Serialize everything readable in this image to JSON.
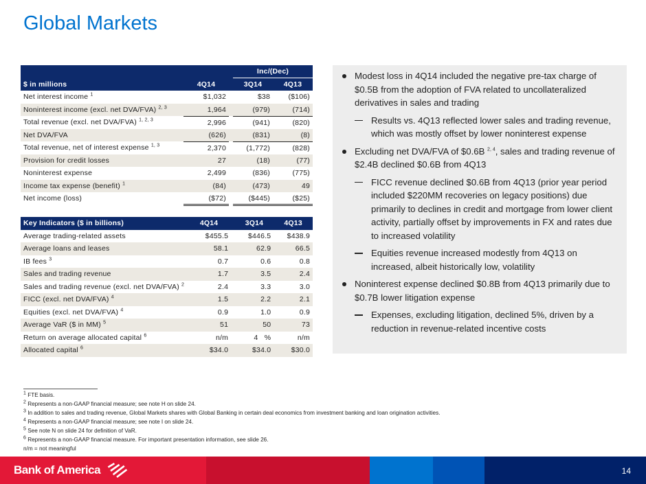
{
  "title": "Global Markets",
  "table1": {
    "group_header": "Inc/(Dec)",
    "label_header": "$ in millions",
    "columns": [
      "4Q14",
      "3Q14",
      "4Q13"
    ],
    "rows": [
      {
        "label": "Net interest income",
        "sup": "1",
        "values": [
          "$1,032",
          "$38",
          "($106)"
        ]
      },
      {
        "label": "Noninterest income (excl. net DVA/FVA)",
        "sup": "2, 3",
        "values": [
          "1,964",
          "(979)",
          "(714)"
        ]
      },
      {
        "label": "Total revenue (excl. net DVA/FVA)",
        "sup": "1, 2, 3",
        "values": [
          "2,996",
          "(941)",
          "(820)"
        ]
      },
      {
        "label": "Net DVA/FVA",
        "sup": "",
        "values": [
          "(626)",
          "(831)",
          "(8)"
        ]
      },
      {
        "label": "Total revenue, net of interest expense",
        "sup": "1, 3",
        "values": [
          "2,370",
          "(1,772)",
          "(828)"
        ]
      },
      {
        "label": "Provision for credit losses",
        "sup": "",
        "values": [
          "27",
          "(18)",
          "(77)"
        ]
      },
      {
        "label": "Noninterest expense",
        "sup": "",
        "values": [
          "2,499",
          "(836)",
          "(775)"
        ]
      },
      {
        "label": "Income tax expense (benefit)",
        "sup": "1",
        "values": [
          "(84)",
          "(473)",
          "49"
        ]
      },
      {
        "label": "Net income (loss)",
        "sup": "",
        "values": [
          "($72)",
          "($445)",
          "($25)"
        ]
      }
    ]
  },
  "table2": {
    "label_header": "Key Indicators ($ in billions)",
    "columns": [
      "4Q14",
      "3Q14",
      "4Q13"
    ],
    "rows": [
      {
        "label": "Average trading-related assets",
        "sup": "",
        "values": [
          "$455.5",
          "$446.5",
          "$438.9"
        ]
      },
      {
        "label": "Average loans and leases",
        "sup": "",
        "values": [
          "58.1",
          "62.9",
          "66.5"
        ]
      },
      {
        "label": "IB fees",
        "sup": "3",
        "values": [
          "0.7",
          "0.6",
          "0.8"
        ]
      },
      {
        "label": "Sales and trading revenue",
        "sup": "",
        "values": [
          "1.7",
          "3.5",
          "2.4"
        ]
      },
      {
        "label": "Sales and trading revenue (excl. net DVA/FVA)",
        "sup": "2",
        "values": [
          "2.4",
          "3.3",
          "3.0"
        ]
      },
      {
        "label": "FICC (excl. net DVA/FVA)",
        "sup": "4",
        "values": [
          "1.5",
          "2.2",
          "2.1"
        ]
      },
      {
        "label": "Equities (excl. net DVA/FVA)",
        "sup": "4",
        "values": [
          "0.9",
          "1.0",
          "0.9"
        ]
      },
      {
        "label": "Average VaR ($ in MM)",
        "sup": "5",
        "values": [
          "51",
          "50",
          "73"
        ]
      },
      {
        "label": "Return on average allocated capital",
        "sup": "6",
        "values": [
          "n/m",
          "4   %",
          "n/m"
        ]
      },
      {
        "label": "Allocated capital",
        "sup": "6",
        "values": [
          "$34.0",
          "$34.0",
          "$30.0"
        ]
      }
    ]
  },
  "bullets": [
    {
      "level": 1,
      "text": "Modest loss in 4Q14 included the negative pre-tax charge of $0.5B from the adoption of FVA related to uncollateralized derivatives in sales and trading"
    },
    {
      "level": 2,
      "text": "Results vs. 4Q13 reflected lower sales and trading revenue, which was mostly offset by lower noninterest expense"
    },
    {
      "level": 1,
      "text_before": "Excluding net DVA/FVA of $0.6B ",
      "sup": "2, 4",
      "text_after": ", sales and trading revenue of $2.4B declined $0.6B from 4Q13"
    },
    {
      "level": 2,
      "text": "FICC revenue declined $0.6B from 4Q13 (prior year period included $220MM recoveries on legacy positions) due primarily to declines in credit and mortgage from lower client activity, partially offset by improvements in FX and rates due to increased volatility"
    },
    {
      "level": 2,
      "text": "Equities revenue increased modestly from 4Q13 on increased, albeit historically low, volatility"
    },
    {
      "level": 1,
      "text": "Noninterest expense declined $0.8B from 4Q13 primarily due to $0.7B lower litigation expense"
    },
    {
      "level": 2,
      "text": "Expenses, excluding litigation, declined 5%, driven by a reduction in revenue-related incentive costs"
    }
  ],
  "footnotes": [
    {
      "sup": "1",
      "text": "FTE basis."
    },
    {
      "sup": "2",
      "text": "Represents a non-GAAP financial measure; see note H on slide 24."
    },
    {
      "sup": "3",
      "text": "In addition to sales and trading revenue, Global Markets shares with Global Banking in certain deal economics from investment banking and loan origination activities."
    },
    {
      "sup": "4",
      "text": "Represents a non-GAAP financial measure; see note I on slide 24."
    },
    {
      "sup": "5",
      "text": "See note N on slide 24 for definition of VaR."
    },
    {
      "sup": "6",
      "text": "Represents a non-GAAP financial measure. For important presentation information, see slide 26."
    },
    {
      "sup": "",
      "text": "n/m = not meaningful"
    }
  ],
  "footer": {
    "logo": "Bank of America",
    "page": "14"
  },
  "colors": {
    "title": "#0073cf",
    "header": "#0d2a6b",
    "alt_row": "#ece9e2",
    "brand_red": "#e31837",
    "brand_blue": "#012169"
  }
}
